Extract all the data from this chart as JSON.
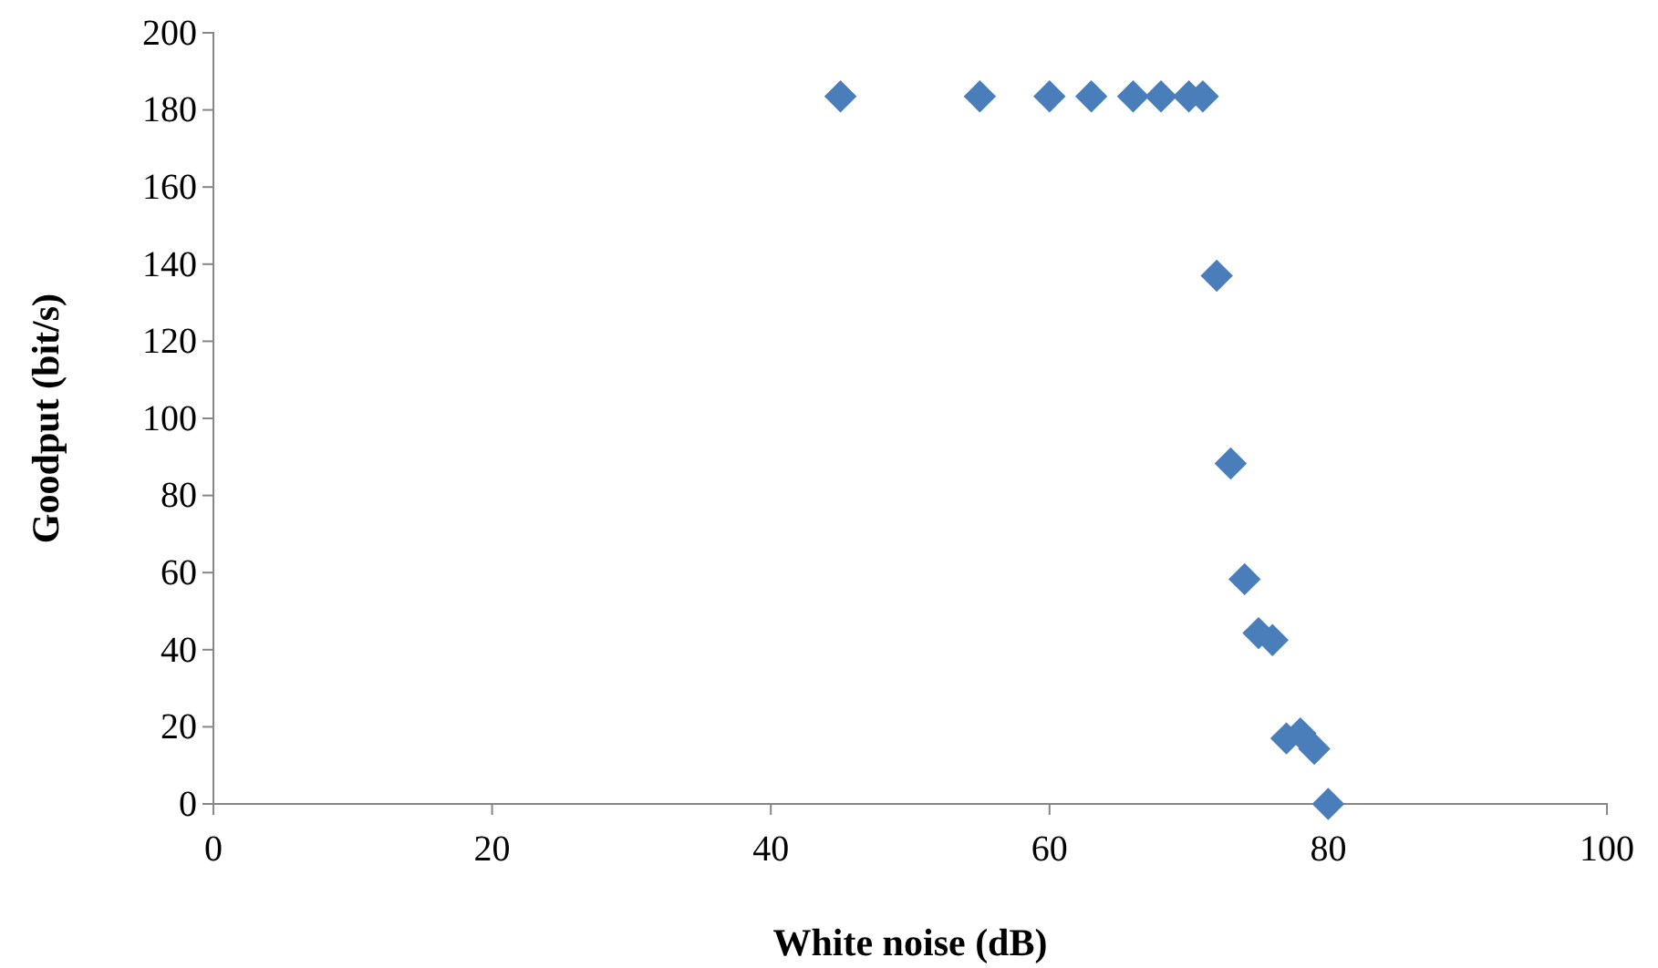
{
  "chart_data": {
    "type": "scatter",
    "xlabel": "White noise (dB)",
    "ylabel": "Goodput (bit/s)",
    "x": [
      45,
      55,
      60,
      63,
      66,
      68,
      70,
      71,
      72,
      73,
      74,
      75,
      76,
      77,
      78,
      79,
      80
    ],
    "series": [
      {
        "color": "#4a7ebb",
        "values": [
          183.5,
          183.5,
          183.5,
          183.5,
          183.5,
          183.5,
          183.5,
          183.5,
          137,
          88.3,
          58.3,
          44.3,
          42.5,
          17,
          18.3,
          14.3,
          0
        ]
      }
    ],
    "xlim": [
      0,
      100
    ],
    "xticks": [
      0,
      20,
      40,
      60,
      80,
      100
    ],
    "ylim": [
      0,
      200
    ],
    "yticks": [
      0,
      20,
      40,
      60,
      80,
      100,
      120,
      140,
      160,
      180,
      200
    ],
    "marker": "diamond",
    "grid": false
  }
}
